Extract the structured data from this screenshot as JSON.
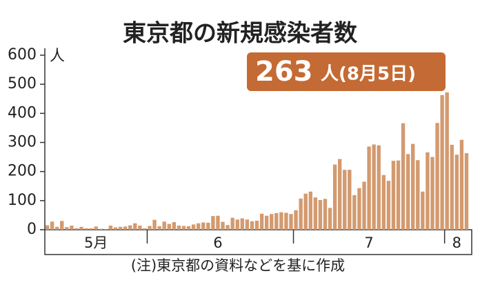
{
  "chart_data": {
    "type": "bar",
    "title": "東京都の新規感染者数",
    "y_unit": "人",
    "annotation": {
      "number": "263",
      "text": "人(8月5日)"
    },
    "note": "(注)東京都の資料などを基に作成",
    "color": "#d39a6f",
    "annotation_color": "#c46a34",
    "categories": [
      null,
      null,
      null,
      null,
      null,
      null,
      null,
      null,
      null,
      null,
      "5月",
      null,
      null,
      null,
      null,
      null,
      null,
      null,
      null,
      null,
      null,
      null,
      null,
      null,
      null,
      null,
      null,
      null,
      null,
      null,
      null,
      null,
      null,
      null,
      null,
      "6",
      null,
      null,
      null,
      null,
      null,
      null,
      null,
      null,
      null,
      null,
      null,
      null,
      null,
      null,
      null,
      null,
      null,
      null,
      null,
      null,
      null,
      null,
      null,
      null,
      null,
      null,
      null,
      null,
      null,
      null,
      "7",
      null,
      null,
      null,
      null,
      null,
      null,
      null,
      null,
      null,
      null,
      null,
      null,
      null,
      null,
      null,
      null,
      null,
      "8",
      null,
      null
    ],
    "values": [
      15,
      28,
      10,
      30,
      9,
      14,
      5,
      10,
      5,
      5,
      11,
      3,
      2,
      14,
      8,
      10,
      11,
      15,
      22,
      14,
      5,
      13,
      34,
      12,
      28,
      20,
      26,
      14,
      13,
      12,
      18,
      22,
      25,
      24,
      47,
      48,
      27,
      16,
      41,
      35,
      39,
      35,
      29,
      31,
      55,
      48,
      54,
      57,
      60,
      58,
      54,
      67,
      107,
      124,
      131,
      111,
      102,
      106,
      75,
      224,
      243,
      206,
      206,
      119,
      143,
      165,
      286,
      293,
      290,
      188,
      168,
      237,
      238,
      366,
      260,
      295,
      239,
      131,
      266,
      250,
      367,
      463,
      472,
      292,
      258,
      309,
      263
    ],
    "ylim": [
      0,
      600
    ],
    "yticks": [
      0,
      100,
      200,
      300,
      400,
      500,
      600
    ]
  }
}
